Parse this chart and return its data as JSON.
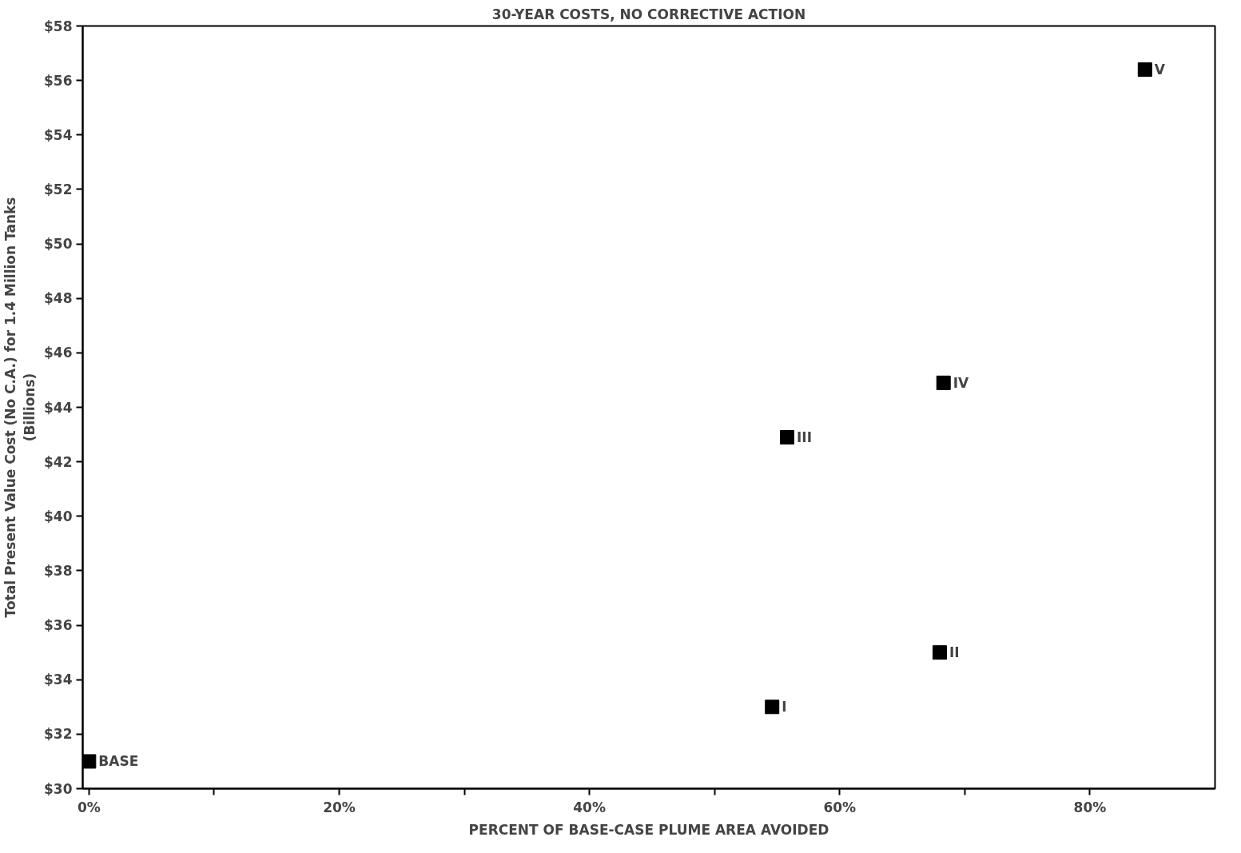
{
  "chart_data": {
    "type": "scatter",
    "title": "30-YEAR COSTS, NO CORRECTIVE ACTION",
    "xlabel": "PERCENT OF BASE-CASE PLUME AREA AVOIDED",
    "ylabel": "Total Present Value Cost (No C.A.) for 1.4 Million Tanks\n(Billions)",
    "x": [
      0,
      54.6,
      68,
      55.8,
      68.3,
      84.4
    ],
    "series": [
      {
        "color": "#000000",
        "values": [
          31,
          33,
          35,
          42.9,
          44.9,
          56.4
        ]
      }
    ],
    "annotations": [
      {
        "text": "BASE",
        "x": 0,
        "y": 31
      },
      {
        "text": "I",
        "x": 54.6,
        "y": 33
      },
      {
        "text": "II",
        "x": 68,
        "y": 35
      },
      {
        "text": "III",
        "x": 55.8,
        "y": 42.9
      },
      {
        "text": "IV",
        "x": 68.3,
        "y": 44.9
      },
      {
        "text": "V",
        "x": 84.4,
        "y": 56.4
      }
    ],
    "xlim": [
      -0.5,
      90
    ],
    "ylim": [
      30,
      58
    ],
    "xticks": [
      {
        "value": 0,
        "label": "0%"
      },
      {
        "value": 10,
        "label": null
      },
      {
        "value": 20,
        "label": "20%"
      },
      {
        "value": 30,
        "label": null
      },
      {
        "value": 40,
        "label": "40%"
      },
      {
        "value": 50,
        "label": null
      },
      {
        "value": 60,
        "label": "60%"
      },
      {
        "value": 70,
        "label": null
      },
      {
        "value": 80,
        "label": "80%"
      }
    ],
    "yticks": [
      {
        "value": 30,
        "label": "$30"
      },
      {
        "value": 32,
        "label": "$32"
      },
      {
        "value": 34,
        "label": "$34"
      },
      {
        "value": 36,
        "label": "$36"
      },
      {
        "value": 38,
        "label": "$38"
      },
      {
        "value": 40,
        "label": "$40"
      },
      {
        "value": 42,
        "label": "$42"
      },
      {
        "value": 44,
        "label": "$44"
      },
      {
        "value": 46,
        "label": "$46"
      },
      {
        "value": 48,
        "label": "$48"
      },
      {
        "value": 50,
        "label": "$50"
      },
      {
        "value": 52,
        "label": "$52"
      },
      {
        "value": 54,
        "label": "$54"
      },
      {
        "value": 56,
        "label": "$56"
      },
      {
        "value": 58,
        "label": "$58"
      }
    ],
    "grid": false,
    "marker": "square"
  }
}
